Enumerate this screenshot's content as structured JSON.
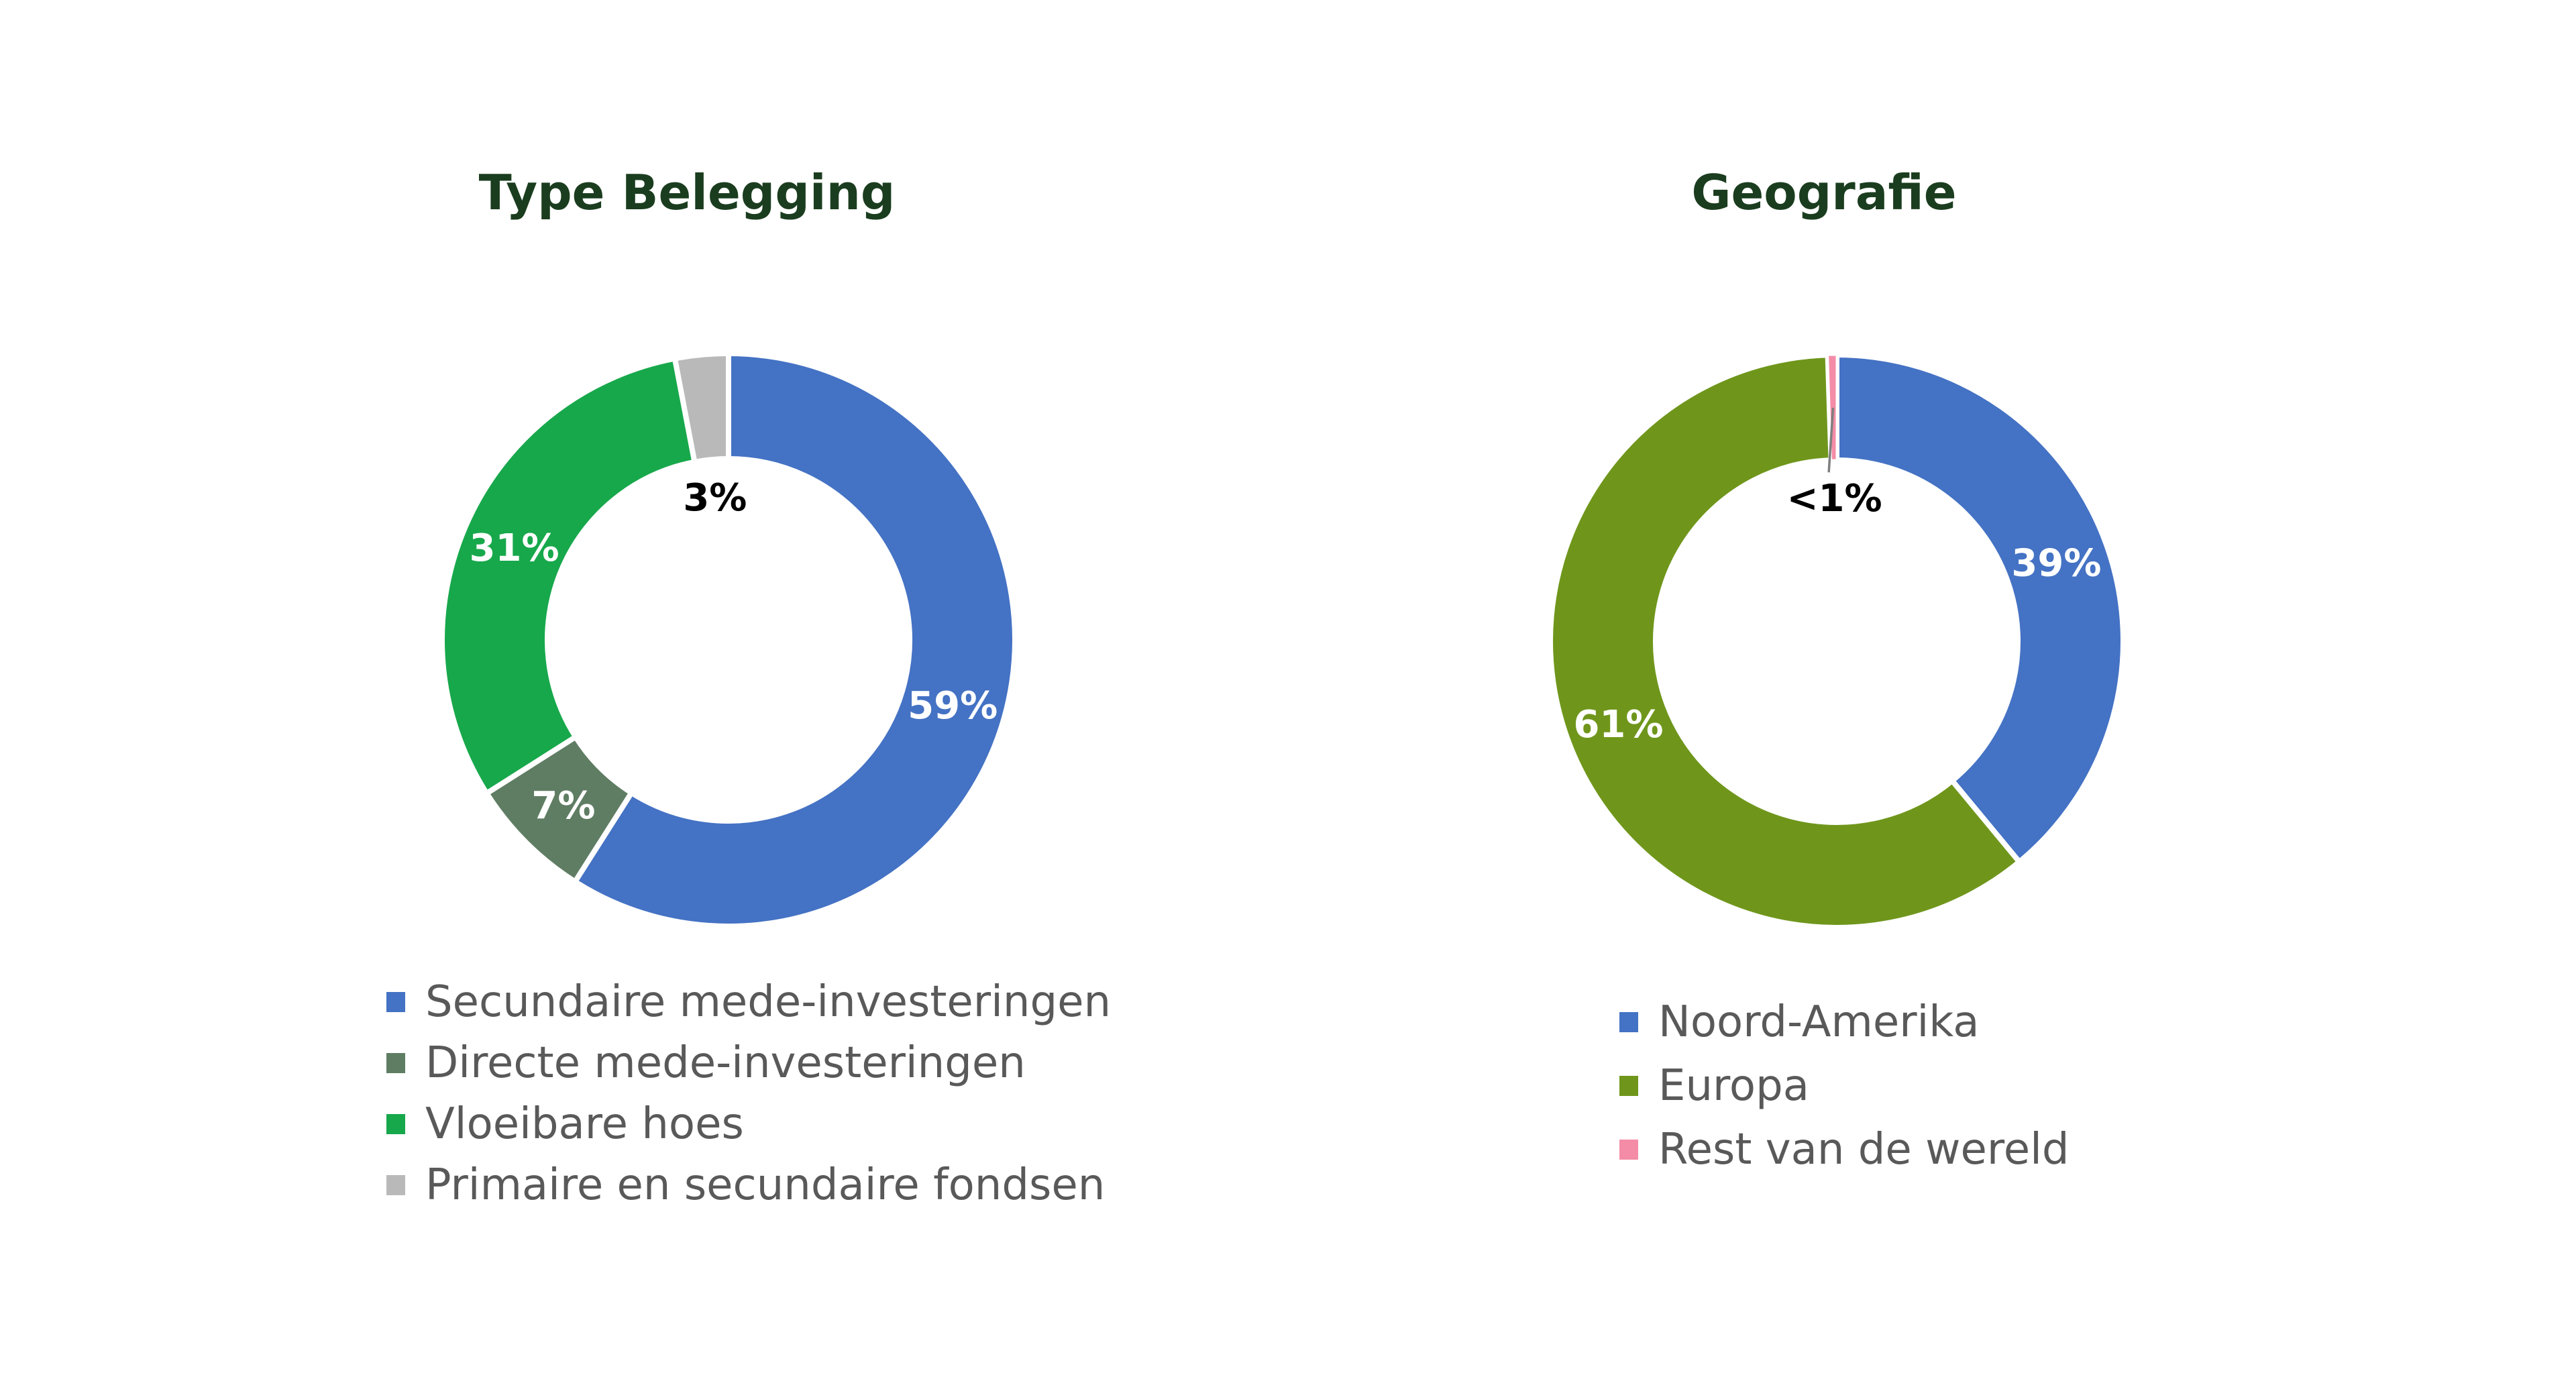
{
  "page": {
    "background": "#FFFFFF",
    "title_color": "#1B3D1F",
    "legend_text_color": "#595959",
    "leader_line_color": "#7F7F7F"
  },
  "chart_data": [
    {
      "type": "donut",
      "title": "Type Belegging",
      "legend_position": "bottom-left",
      "start_angle_deg": 0,
      "direction": "clockwise",
      "segments": [
        {
          "label": "Secundaire mede-investeringen",
          "value": 59,
          "pct_label": "59%",
          "color": "#4472C4",
          "label_style": "on-arc"
        },
        {
          "label": "Directe mede-investeringen",
          "value": 7,
          "pct_label": "7%",
          "color": "#5F7D63",
          "label_style": "on-arc"
        },
        {
          "label": "Vloeibare hoes",
          "value": 31,
          "pct_label": "31%",
          "color": "#17A84B",
          "label_style": "on-arc"
        },
        {
          "label": "Primaire en secundaire fondsen",
          "value": 3,
          "pct_label": "3%",
          "color": "#B9B9B9",
          "label_style": "inside"
        }
      ]
    },
    {
      "type": "donut",
      "title": "Geografie",
      "legend_position": "bottom-left",
      "start_angle_deg": 0,
      "direction": "clockwise",
      "segments": [
        {
          "label": "Noord-Amerika",
          "value": 39,
          "pct_label": "39%",
          "color": "#4472C4",
          "label_style": "on-arc"
        },
        {
          "label": "Europa",
          "value": 60.5,
          "pct_label": "61%",
          "color": "#6F961B",
          "label_style": "on-arc"
        },
        {
          "label": "Rest van de wereld",
          "value": 0.5,
          "pct_label": "<1%",
          "color": "#F48CA7",
          "label_style": "inside",
          "leader": true
        }
      ]
    }
  ]
}
